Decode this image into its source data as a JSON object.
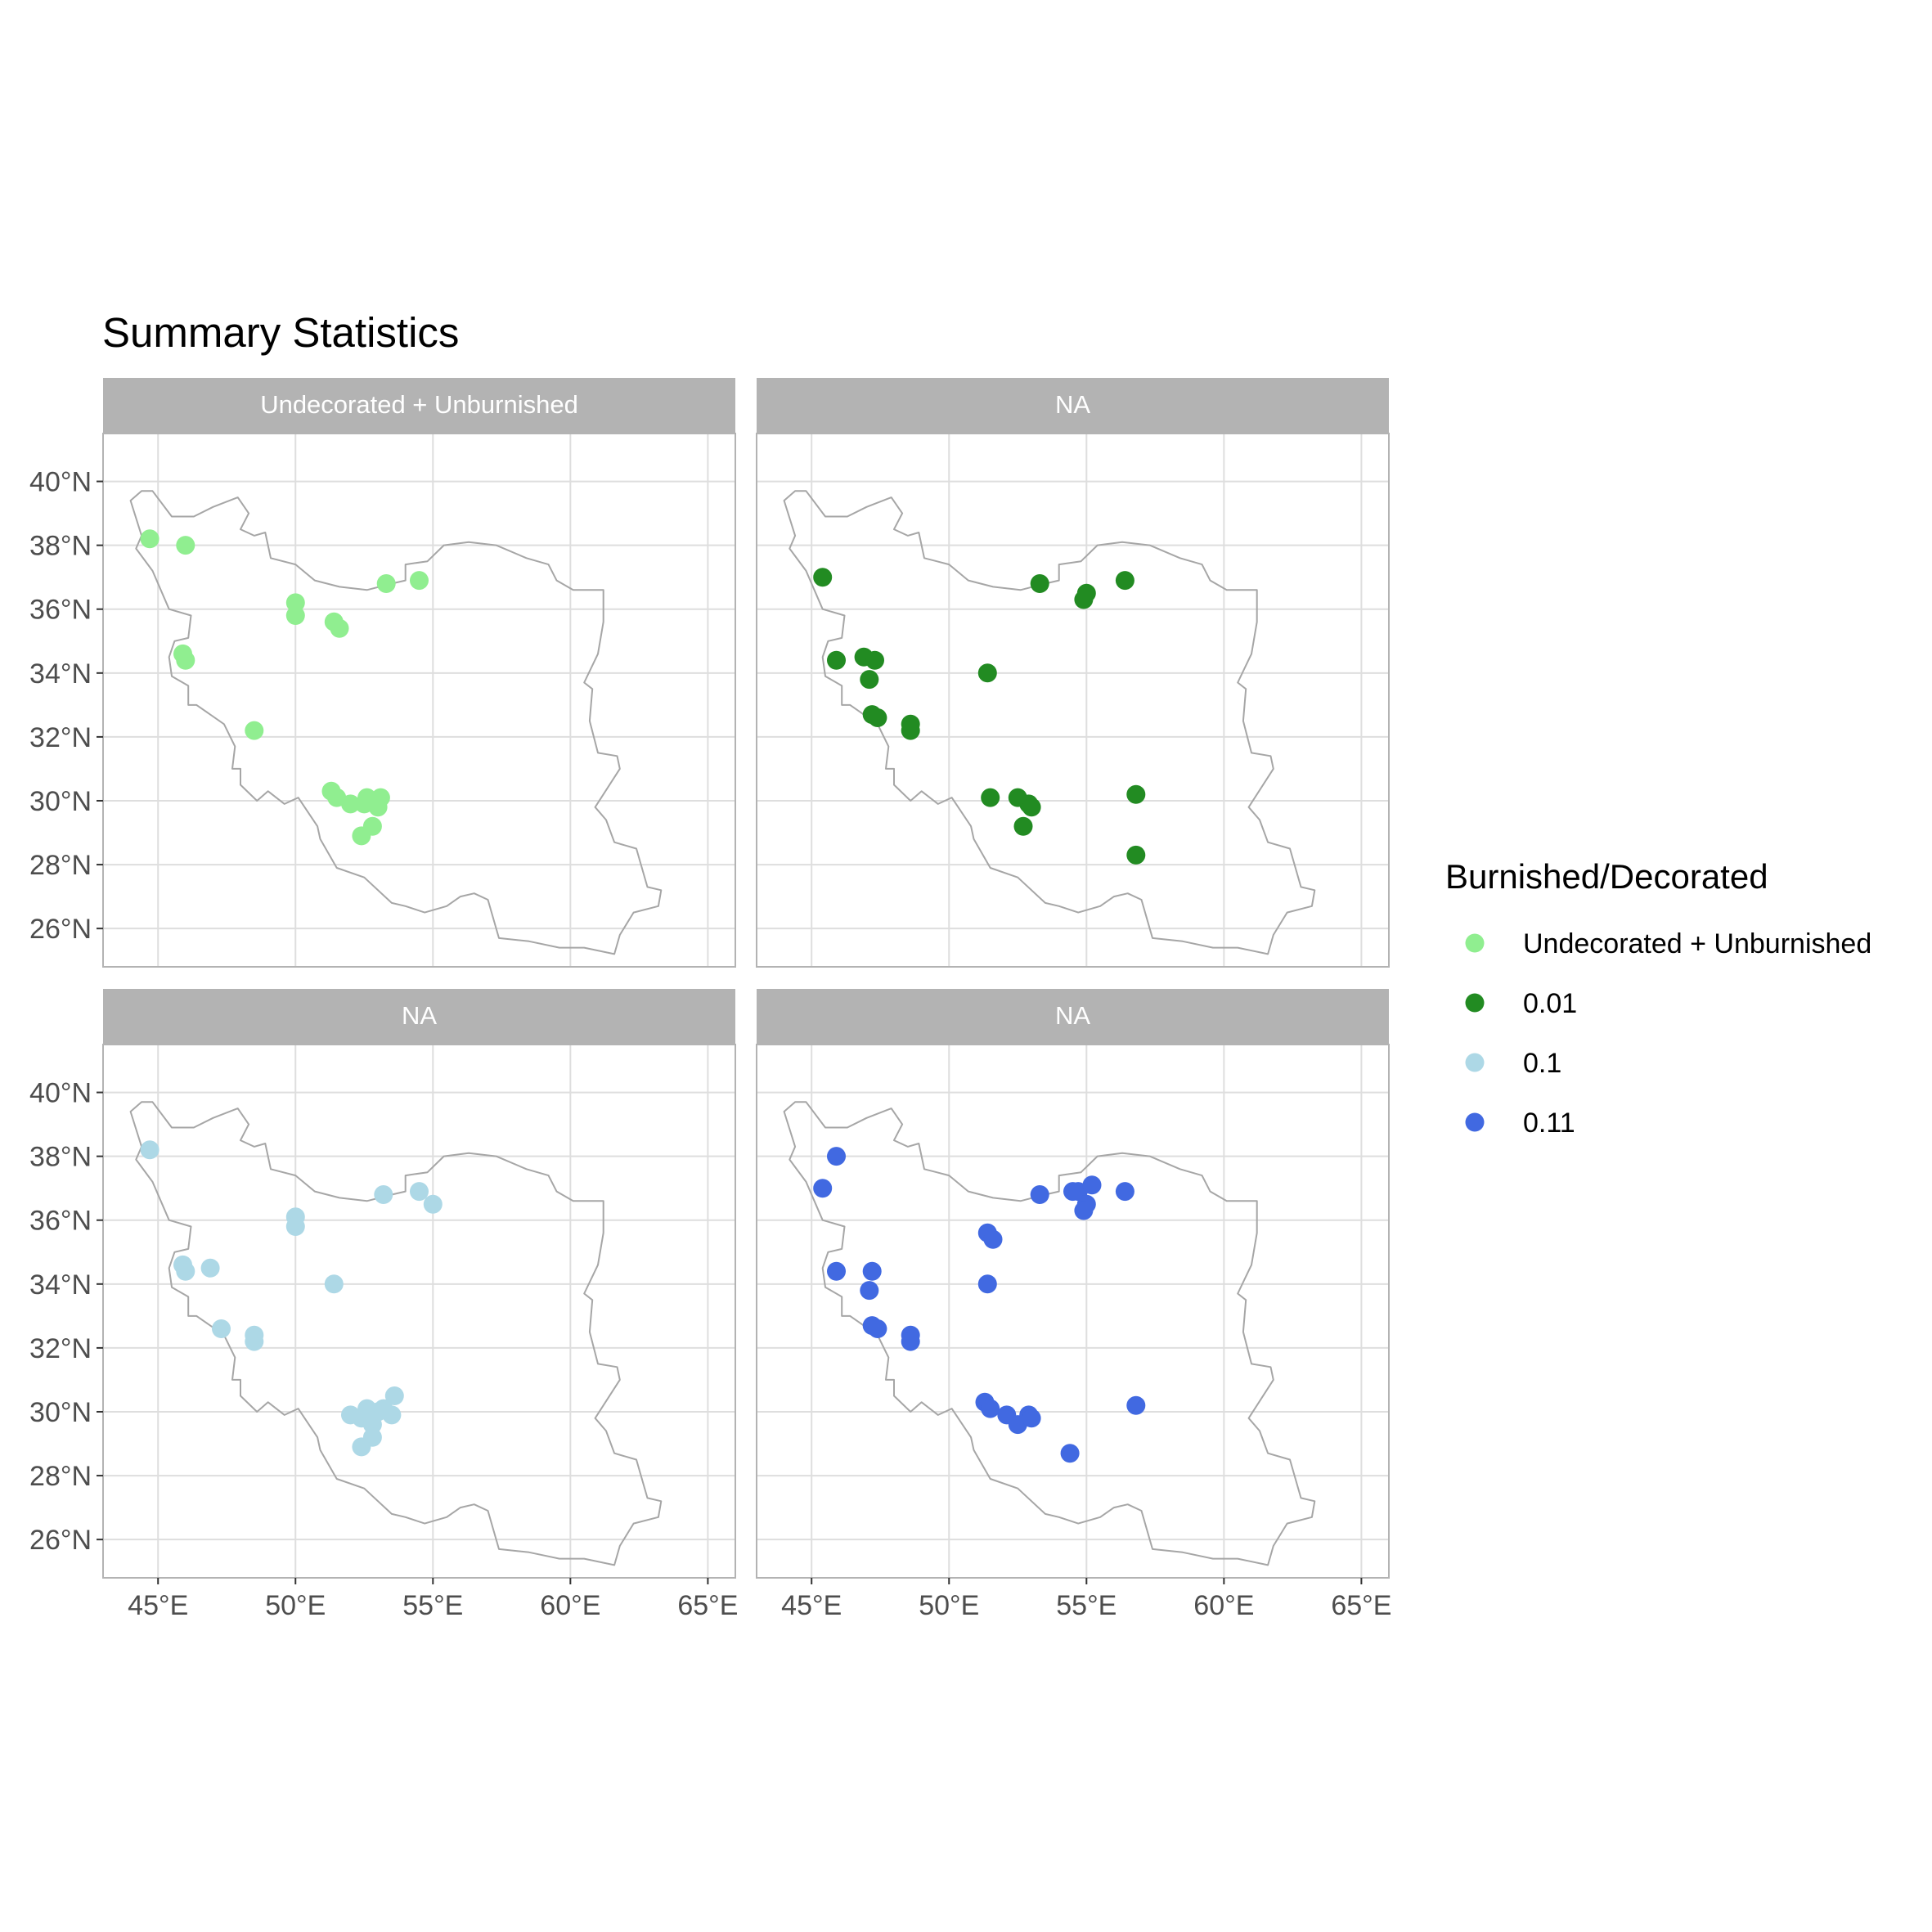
{
  "title": "Summary Statistics",
  "legend": {
    "title": "Burnished/Decorated",
    "items": [
      {
        "label": "Undecorated + Unburnished",
        "color": "#90EE90"
      },
      {
        "label": "0.01",
        "color": "#228B22"
      },
      {
        "label": "0.1",
        "color": "#ADD8E6"
      },
      {
        "label": "0.11",
        "color": "#4169E1"
      }
    ]
  },
  "axes": {
    "x_ticks": [
      "45°E",
      "50°E",
      "55°E",
      "60°E",
      "65°E"
    ],
    "x_values": [
      45,
      50,
      55,
      60,
      65
    ],
    "y_ticks": [
      "26°N",
      "28°N",
      "30°N",
      "32°N",
      "34°N",
      "36°N",
      "38°N",
      "40°N"
    ],
    "y_values": [
      26,
      28,
      30,
      32,
      34,
      36,
      38,
      40
    ],
    "xlim": [
      43,
      66
    ],
    "ylim": [
      24.8,
      41.5
    ]
  },
  "chart_data": [
    {
      "type": "scatter",
      "panel": "Undecorated + Unburnished",
      "series": [
        {
          "name": "Undecorated + Unburnished",
          "color": "#90EE90",
          "points": [
            [
              44.7,
              38.2
            ],
            [
              46.0,
              38.0
            ],
            [
              50.0,
              36.2
            ],
            [
              50.0,
              35.8
            ],
            [
              51.4,
              35.6
            ],
            [
              51.6,
              35.4
            ],
            [
              53.3,
              36.8
            ],
            [
              54.5,
              36.9
            ],
            [
              45.9,
              34.6
            ],
            [
              46.0,
              34.4
            ],
            [
              48.5,
              32.2
            ],
            [
              51.3,
              30.3
            ],
            [
              51.5,
              30.1
            ],
            [
              52.0,
              29.9
            ],
            [
              52.5,
              29.9
            ],
            [
              52.6,
              30.1
            ],
            [
              53.0,
              29.8
            ],
            [
              53.1,
              30.1
            ],
            [
              52.8,
              29.2
            ],
            [
              52.4,
              28.9
            ]
          ]
        }
      ]
    },
    {
      "type": "scatter",
      "panel": "NA",
      "series": [
        {
          "name": "0.01",
          "color": "#228B22",
          "points": [
            [
              45.4,
              37.0
            ],
            [
              45.9,
              34.4
            ],
            [
              46.9,
              34.5
            ],
            [
              47.3,
              34.4
            ],
            [
              47.1,
              33.8
            ],
            [
              47.2,
              32.7
            ],
            [
              47.4,
              32.6
            ],
            [
              48.6,
              32.4
            ],
            [
              48.6,
              32.2
            ],
            [
              51.4,
              34.0
            ],
            [
              53.3,
              36.8
            ],
            [
              55.0,
              36.5
            ],
            [
              54.9,
              36.3
            ],
            [
              56.4,
              36.9
            ],
            [
              51.5,
              30.1
            ],
            [
              52.5,
              30.1
            ],
            [
              52.9,
              29.9
            ],
            [
              53.0,
              29.8
            ],
            [
              52.7,
              29.2
            ],
            [
              56.8,
              30.2
            ],
            [
              56.8,
              28.3
            ]
          ]
        }
      ]
    },
    {
      "type": "scatter",
      "panel": "NA",
      "series": [
        {
          "name": "0.1",
          "color": "#ADD8E6",
          "points": [
            [
              44.7,
              38.2
            ],
            [
              45.9,
              34.6
            ],
            [
              46.0,
              34.4
            ],
            [
              46.9,
              34.5
            ],
            [
              47.3,
              32.6
            ],
            [
              48.5,
              32.4
            ],
            [
              48.5,
              32.2
            ],
            [
              50.0,
              36.1
            ],
            [
              50.0,
              35.8
            ],
            [
              51.4,
              34.0
            ],
            [
              53.2,
              36.8
            ],
            [
              54.5,
              36.9
            ],
            [
              55.0,
              36.5
            ],
            [
              52.0,
              29.9
            ],
            [
              52.4,
              29.8
            ],
            [
              52.6,
              30.1
            ],
            [
              52.8,
              29.6
            ],
            [
              53.0,
              30.0
            ],
            [
              53.2,
              30.1
            ],
            [
              53.5,
              29.9
            ],
            [
              53.6,
              30.5
            ],
            [
              52.8,
              29.2
            ],
            [
              52.4,
              28.9
            ]
          ]
        }
      ]
    },
    {
      "type": "scatter",
      "panel": "NA",
      "series": [
        {
          "name": "0.11",
          "color": "#4169E1",
          "points": [
            [
              45.4,
              37.0
            ],
            [
              45.9,
              38.0
            ],
            [
              45.9,
              34.4
            ],
            [
              47.2,
              34.4
            ],
            [
              47.1,
              33.8
            ],
            [
              47.2,
              32.7
            ],
            [
              47.4,
              32.6
            ],
            [
              48.6,
              32.4
            ],
            [
              48.6,
              32.2
            ],
            [
              51.4,
              35.6
            ],
            [
              51.6,
              35.4
            ],
            [
              51.4,
              34.0
            ],
            [
              53.3,
              36.8
            ],
            [
              54.5,
              36.9
            ],
            [
              54.7,
              36.9
            ],
            [
              55.2,
              37.1
            ],
            [
              55.0,
              36.5
            ],
            [
              54.9,
              36.3
            ],
            [
              56.4,
              36.9
            ],
            [
              51.3,
              30.3
            ],
            [
              51.5,
              30.1
            ],
            [
              52.1,
              29.9
            ],
            [
              52.5,
              29.6
            ],
            [
              52.9,
              29.9
            ],
            [
              53.0,
              29.8
            ],
            [
              54.4,
              28.7
            ],
            [
              56.8,
              30.2
            ]
          ]
        }
      ]
    }
  ]
}
